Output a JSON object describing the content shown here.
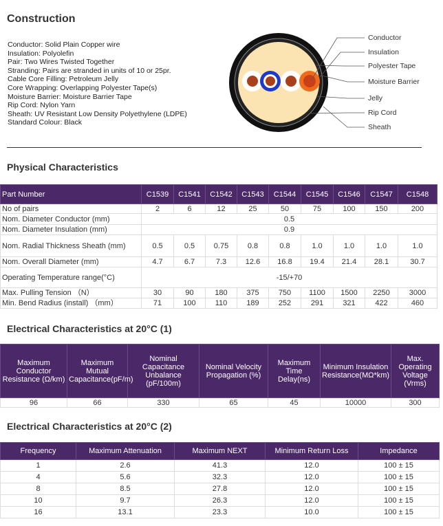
{
  "construction": {
    "title": "Construction",
    "items": [
      "Conductor: Solid Plain Copper wire",
      "Insulation: Polyolefin",
      "Pair: Two Wires Twisted Together",
      "Stranding: Pairs are stranded in units of 10 or 25pr.",
      "Cable Core Filling: Petroleum Jelly",
      "Core Wrapping: Overlapping Polyester Tape(s)",
      "Moisture Barrier: Moisture Barrier Tape",
      "Rip Cord: Nylon Yarn",
      "Sheath: UV Resistant Low Density Polyethylene (LDPE)",
      "Standard Colour: Black"
    ],
    "diagram_labels": [
      "Conductor",
      "Insulation",
      "Polyester Tape",
      "Moisture Barrier",
      "Jelly",
      "Rip Cord",
      "Sheath"
    ]
  },
  "physical": {
    "title": "Physical Characteristics",
    "header": [
      "Part Number",
      "C1539",
      "C1541",
      "C1542",
      "C1543",
      "C1544",
      "C1545",
      "C1546",
      "C1547",
      "C1548"
    ],
    "rows": [
      [
        "No of pairs",
        "2",
        "6",
        "12",
        "25",
        "50",
        "75",
        "100",
        "150",
        "200"
      ],
      [
        "Nom. Diameter Conductor (mm)",
        "0.5"
      ],
      [
        "Nom. Diameter Insulation (mm)",
        "0.9"
      ],
      [
        "Nom. Radial Thickness Sheath (mm)",
        "0.5",
        "0.5",
        "0.75",
        "0.8",
        "0.8",
        "1.0",
        "1.0",
        "1.0",
        "1.0"
      ],
      [
        "Nom. Overall Diameter (mm)",
        "4.7",
        "6.7",
        "7.3",
        "12.6",
        "16.8",
        "19.4",
        "21.4",
        "28.1",
        "30.7"
      ],
      [
        "Operating Temperature range(°C)",
        "-15/+70"
      ],
      [
        "Max. Pulling Tension （N）",
        "30",
        "90",
        "180",
        "375",
        "750",
        "1100",
        "1500",
        "2250",
        "3000"
      ],
      [
        "Min. Bend Radius (install) （mm）",
        "71",
        "100",
        "110",
        "189",
        "252",
        "291",
        "321",
        "422",
        "460"
      ]
    ]
  },
  "electrical1": {
    "title": "Electrical Characteristics at 20°C (1)",
    "header": [
      "Maximum Conductor Resistance (Ω/km)",
      "Maximum Mutual Capacitance(pF/m)",
      "Nominal Capacitance Unbalance (pF/100m)",
      "Nominal Velocity Propagation (%)",
      "Maximum Time Delay(ns)",
      "Minimum Insulation Resistance(MΩ*km)",
      "Max. Operating Voltage (Vrms)"
    ],
    "rows": [
      [
        "96",
        "66",
        "330",
        "65",
        "45",
        "10000",
        "300"
      ]
    ]
  },
  "electrical2": {
    "title": "Electrical Characteristics at 20°C (2)",
    "header": [
      "Frequency",
      "Maximum Attenuation",
      "Maximum NEXT",
      "Minimum Return Loss",
      "Impedance"
    ],
    "rows": [
      [
        "1",
        "2.6",
        "41.3",
        "12.0",
        "100 ± 15"
      ],
      [
        "4",
        "5.6",
        "32.3",
        "12.0",
        "100 ± 15"
      ],
      [
        "8",
        "8.5",
        "27.8",
        "12.0",
        "100 ± 15"
      ],
      [
        "10",
        "9.7",
        "26.3",
        "12.0",
        "100 ± 15"
      ],
      [
        "16",
        "13.1",
        "23.3",
        "10.0",
        "100 ± 15"
      ]
    ]
  }
}
